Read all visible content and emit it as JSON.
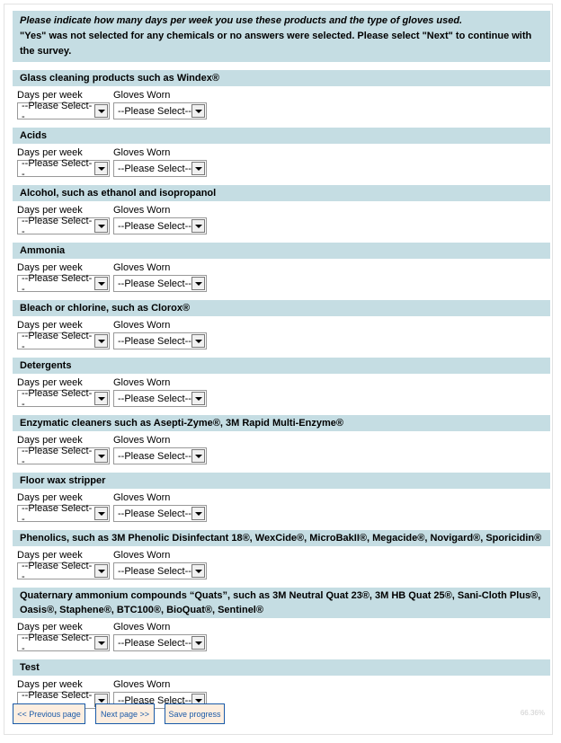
{
  "intro": {
    "line1": "Please indicate how many days per week you use these products and the type of gloves used.",
    "line2": "\"Yes\" was not selected for any chemicals or no answers were selected. Please select \"Next\" to continue with the survey."
  },
  "labels": {
    "days": "Days per week",
    "gloves": "Gloves Worn"
  },
  "select_placeholder": "--Please Select--",
  "sections": [
    {
      "title": "Glass cleaning products such as Windex®"
    },
    {
      "title": "Acids"
    },
    {
      "title": "Alcohol, such as ethanol and isopropanol"
    },
    {
      "title": "Ammonia"
    },
    {
      "title": "Bleach or chlorine, such as Clorox®"
    },
    {
      "title": "Detergents"
    },
    {
      "title": "Enzymatic cleaners such as Asepti-Zyme®, 3M Rapid Multi-Enzyme®"
    },
    {
      "title": "Floor wax stripper"
    },
    {
      "title": "Phenolics, such as 3M Phenolic Disinfectant 18®, WexCide®, MicroBakII®, Megacide®, Novigard®, Sporicidin®"
    },
    {
      "title": "Quaternary ammonium compounds “Quats”, such as 3M Neutral Quat 23®, 3M HB Quat 25®, Sani-Cloth Plus®, Oasis®, Staphene®, BTC100®, BioQuat®, Sentinel®"
    },
    {
      "title": "Test"
    }
  ],
  "buttons": {
    "previous": "<< Previous page",
    "next": "Next page >>",
    "save": "Save progress"
  },
  "progress": "66.36%"
}
